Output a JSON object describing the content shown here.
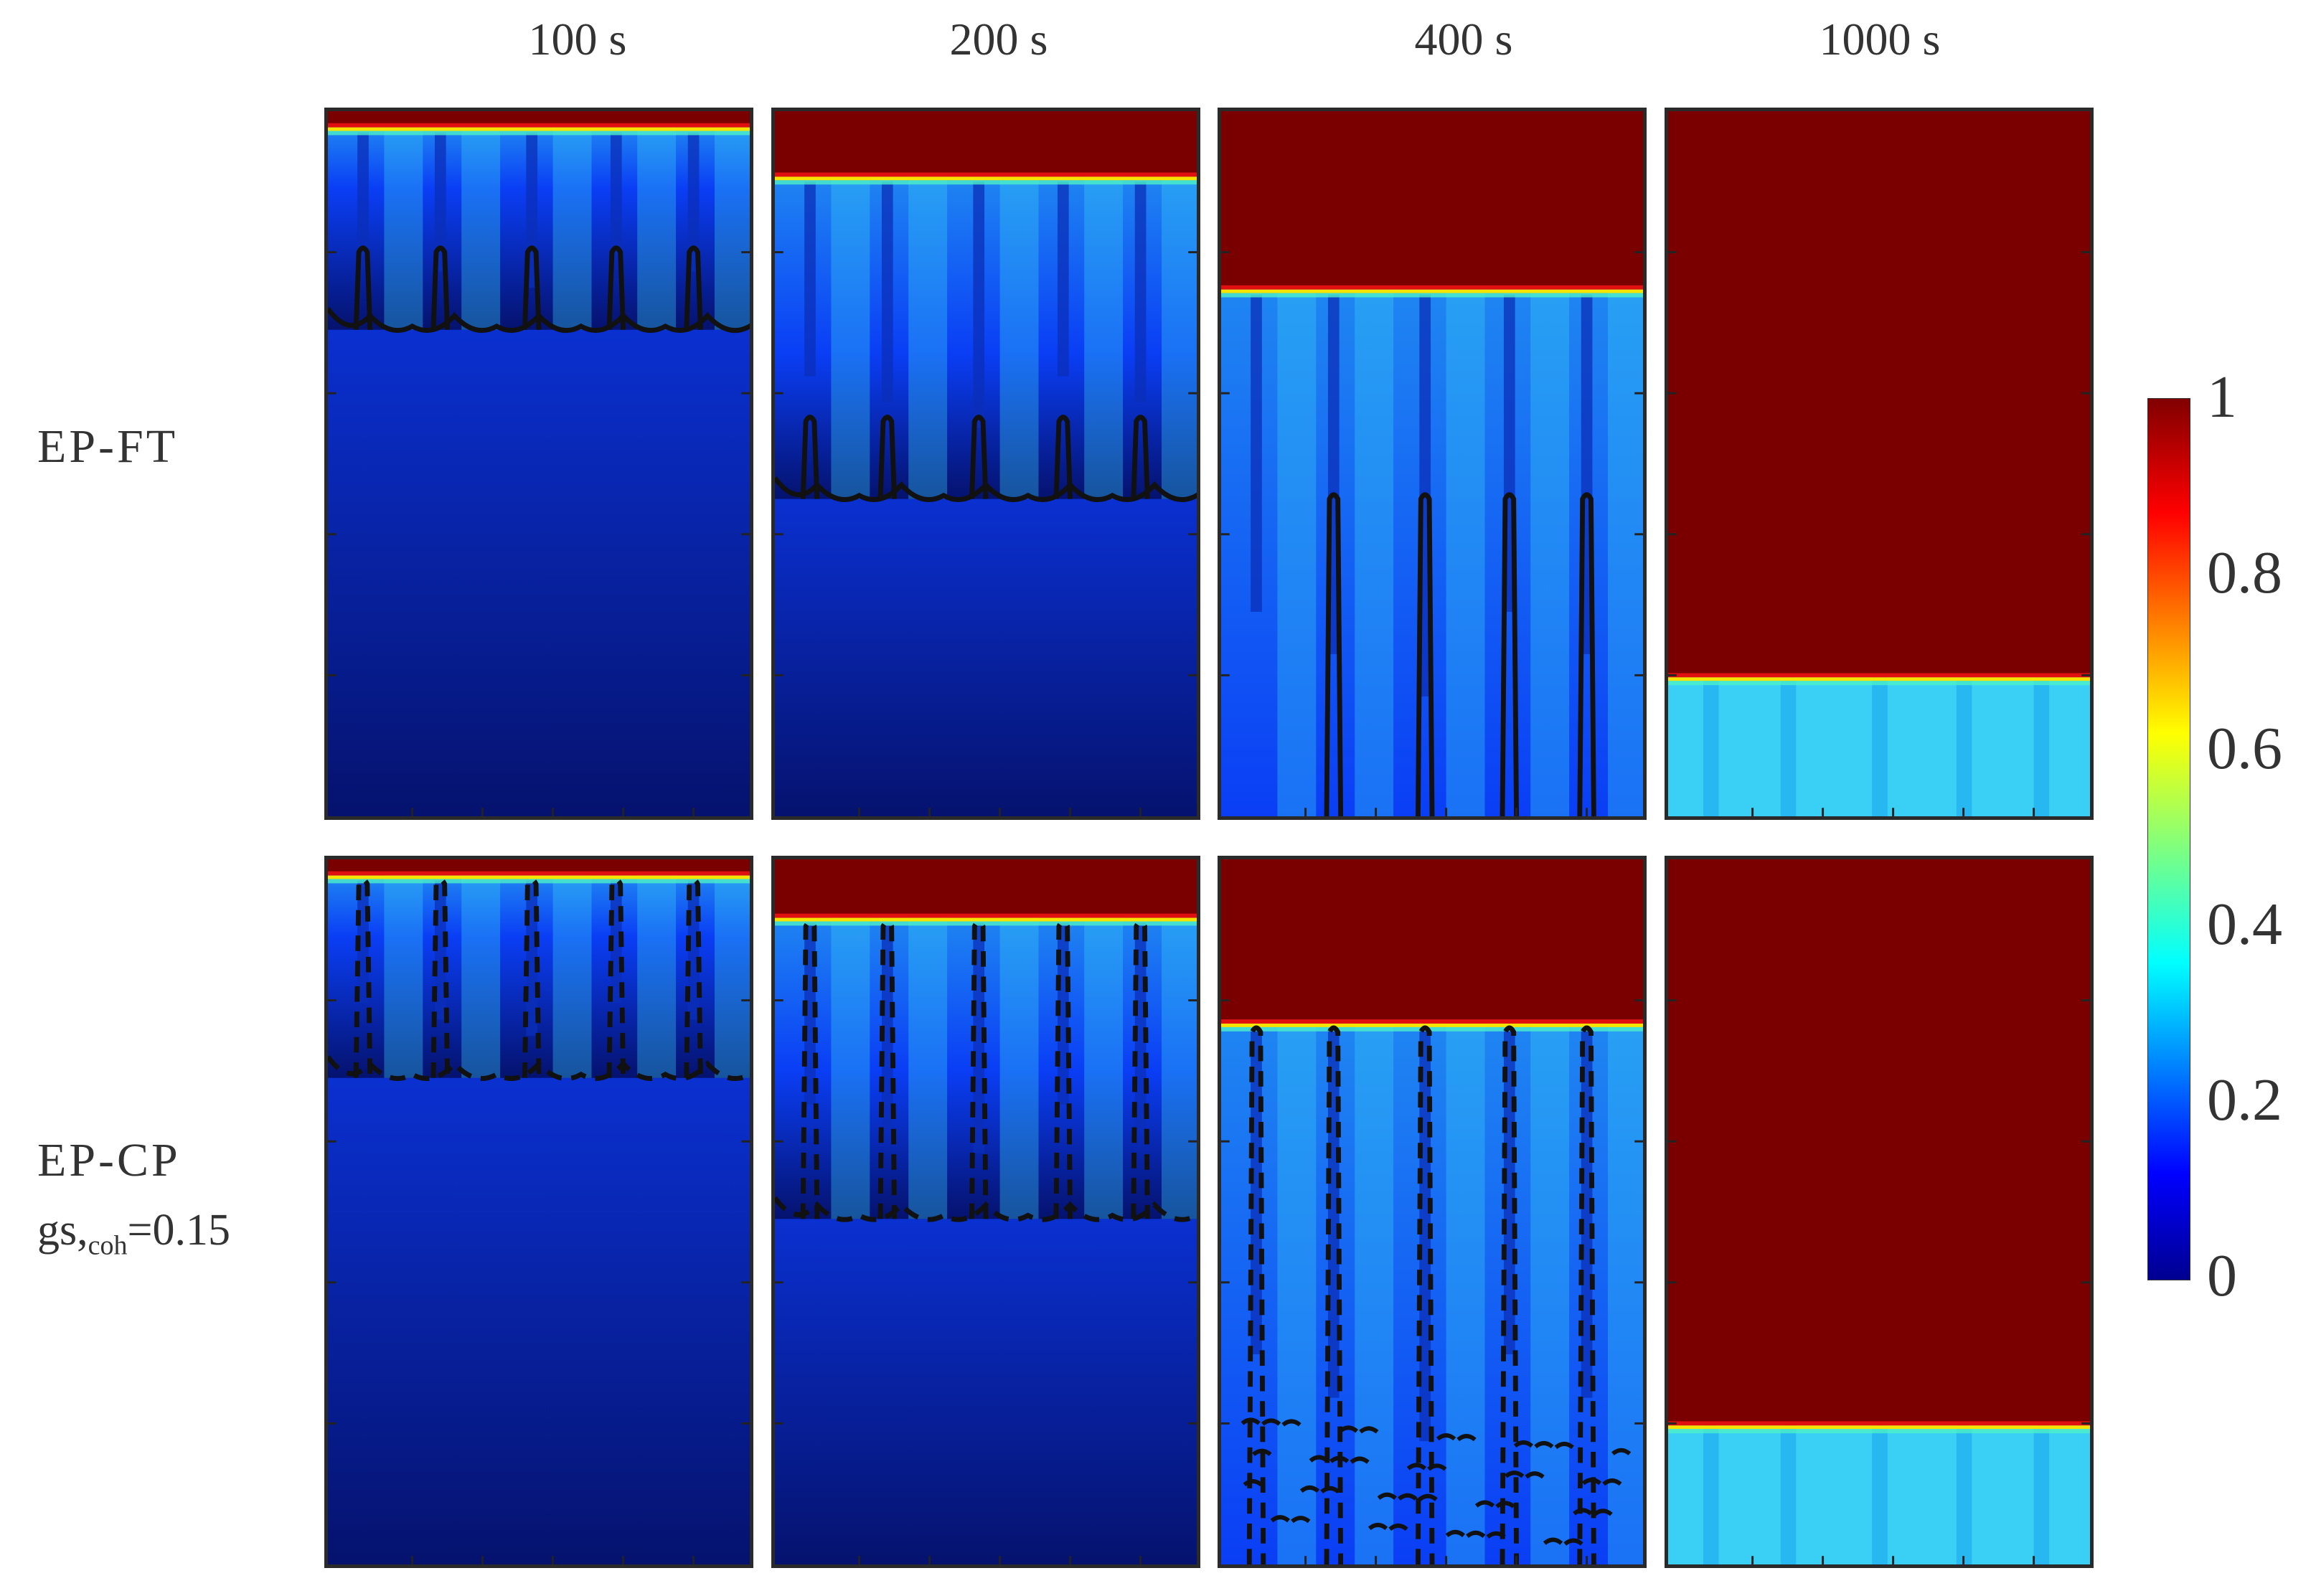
{
  "figure": {
    "column_titles": [
      "100 s",
      "200 s",
      "400 s",
      "1000 s"
    ],
    "row_titles": [
      {
        "name": "EP-FT",
        "sub_main": "",
        "sub_script": "",
        "sub_tail": ""
      },
      {
        "name": "EP-CP",
        "sub_main": "gs,",
        "sub_script": "coh",
        "sub_tail": "=0.15"
      }
    ],
    "panels": [
      {
        "row": 0,
        "col": 0,
        "front_level": 0.02,
        "mush_bottom": 0.31,
        "contour": "solid",
        "channel_depth": 0.31
      },
      {
        "row": 0,
        "col": 1,
        "front_level": 0.09,
        "mush_bottom": 0.55,
        "contour": "solid",
        "channel_depth": 0.55
      },
      {
        "row": 0,
        "col": 2,
        "front_level": 0.25,
        "mush_bottom": 1.0,
        "contour": "solid",
        "channel_depth": 1.0
      },
      {
        "row": 0,
        "col": 3,
        "front_level": 0.8,
        "mush_bottom": 1.0,
        "contour": "none",
        "channel_depth": 0
      },
      {
        "row": 1,
        "col": 0,
        "front_level": 0.02,
        "mush_bottom": 0.31,
        "contour": "dashed",
        "channel_depth": 0.31
      },
      {
        "row": 1,
        "col": 1,
        "front_level": 0.08,
        "mush_bottom": 0.51,
        "contour": "dashed",
        "channel_depth": 0.51
      },
      {
        "row": 1,
        "col": 2,
        "front_level": 0.23,
        "mush_bottom": 1.0,
        "contour": "dashed",
        "channel_depth": 1.0
      },
      {
        "row": 1,
        "col": 3,
        "front_level": 0.8,
        "mush_bottom": 1.0,
        "contour": "none",
        "channel_depth": 0
      }
    ],
    "colorbar": {
      "ticks": [
        "1",
        "0.8",
        "0.6",
        "0.4",
        "0.2",
        "0"
      ],
      "range": [
        0,
        1
      ],
      "colormap": "jet"
    },
    "colors": {
      "liquid": "#7a0000",
      "deep_blue": "#05126e",
      "mid_blue": "#0a3ef5",
      "channel_blue": "#1aa0f5",
      "light_cyan": "#3ad0f5",
      "front_yellow": "#f6e400"
    }
  }
}
